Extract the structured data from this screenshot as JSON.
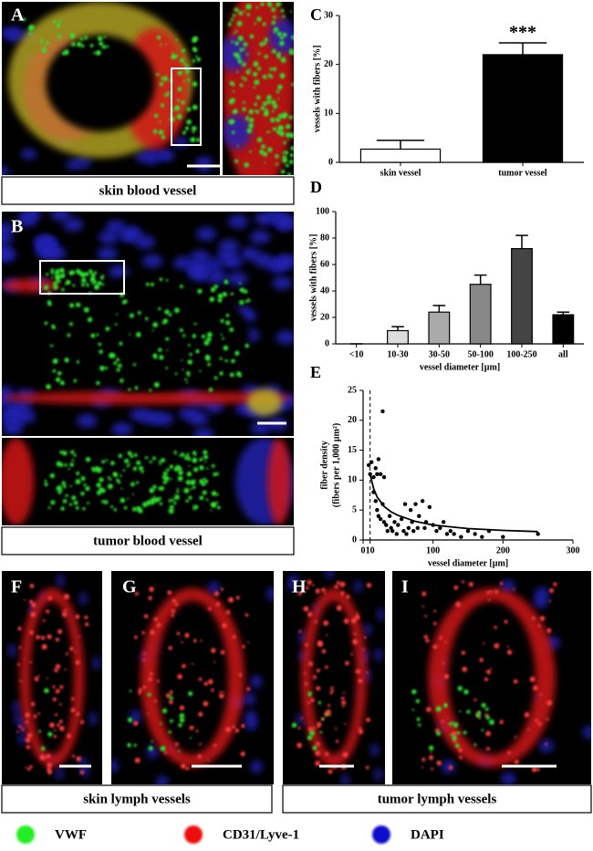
{
  "panel_letters": [
    "A",
    "B",
    "F",
    "G",
    "H",
    "I"
  ],
  "captions": [
    "skin blood vessel",
    "tumor blood vessel",
    "skin lymph vessels",
    "tumor lymph vessels"
  ],
  "legend": [
    {
      "name": "VWF",
      "color": "#22ee22"
    },
    {
      "name": "CD31/Lyve-1",
      "color": "#ee1111"
    },
    {
      "name": "DAPI",
      "color": "#1111cc"
    }
  ],
  "chart_data": [
    {
      "type": "bar",
      "letter": "C",
      "ylabel": "vessels with fibers [%]",
      "categories": [
        "skin vessel",
        "tumor vessel"
      ],
      "values": [
        2.7,
        22
      ],
      "errors": [
        1.8,
        2.4
      ],
      "colors": [
        "#ffffff",
        "#000000"
      ],
      "ylim": [
        0,
        30
      ],
      "yticks": [
        0,
        10,
        20,
        30
      ],
      "annotation": "***"
    },
    {
      "type": "bar",
      "letter": "D",
      "ylabel": "vessels with fibers [%]",
      "xlabel": "vessel diameter [µm]",
      "categories": [
        "<10",
        "10-30",
        "30-50",
        "50-100",
        "100-250",
        "all"
      ],
      "values": [
        0,
        10,
        24,
        45,
        72,
        22
      ],
      "errors": [
        0,
        3,
        5,
        7,
        10,
        2
      ],
      "colors": [
        "#ffffff",
        "#dddddd",
        "#aaaaaa",
        "#888888",
        "#444444",
        "#000000"
      ],
      "ylim": [
        0,
        100
      ],
      "yticks": [
        0,
        20,
        40,
        60,
        80,
        100
      ]
    },
    {
      "type": "scatter",
      "letter": "E",
      "ylabel": [
        "fiber density",
        "(fibers per 1,000 µm²)"
      ],
      "xlabel": "vessel diameter [µm]",
      "xlim": [
        0,
        300
      ],
      "xticks": [
        0,
        10,
        100,
        200,
        300
      ],
      "ylim": [
        0,
        25
      ],
      "yticks": [
        0,
        5,
        10,
        15,
        20,
        25
      ],
      "vline": 10,
      "series": [
        {
          "color": "#000000",
          "x": [
            8,
            10,
            12,
            15,
            18,
            20,
            22,
            25,
            28,
            30,
            15,
            18,
            20,
            22,
            25,
            28,
            30,
            33,
            35,
            38,
            40,
            42,
            45,
            48,
            50,
            55,
            58,
            60,
            62,
            65,
            68,
            70,
            72,
            75,
            78,
            80,
            85,
            88,
            90,
            95,
            100,
            105,
            110,
            115,
            120,
            125,
            130,
            140,
            150,
            160,
            170,
            180,
            200,
            250
          ],
          "values": [
            12.5,
            11,
            13,
            10.5,
            12,
            11,
            13.5,
            11,
            21.5,
            10.5,
            8,
            6.5,
            5,
            4,
            3.5,
            6,
            3,
            2.5,
            1.5,
            4,
            2,
            1.5,
            3,
            1,
            2.5,
            3.5,
            1.5,
            6,
            1,
            2,
            5,
            3,
            1.5,
            6,
            2,
            4,
            6.5,
            2,
            3,
            5.5,
            2.5,
            1.5,
            2,
            3,
            1,
            1.5,
            1,
            0.5,
            1.5,
            1,
            0.5,
            1.5,
            0.5,
            1
          ]
        },
        {
          "color": "#000000",
          "x": [
            10,
            15,
            20,
            30,
            40,
            50,
            75,
            100,
            150,
            200,
            250
          ],
          "values": [
            11,
            8.6,
            7.2,
            5.6,
            4.7,
            4.1,
            3.1,
            2.5,
            1.9,
            1.6,
            1.4
          ]
        }
      ]
    }
  ]
}
